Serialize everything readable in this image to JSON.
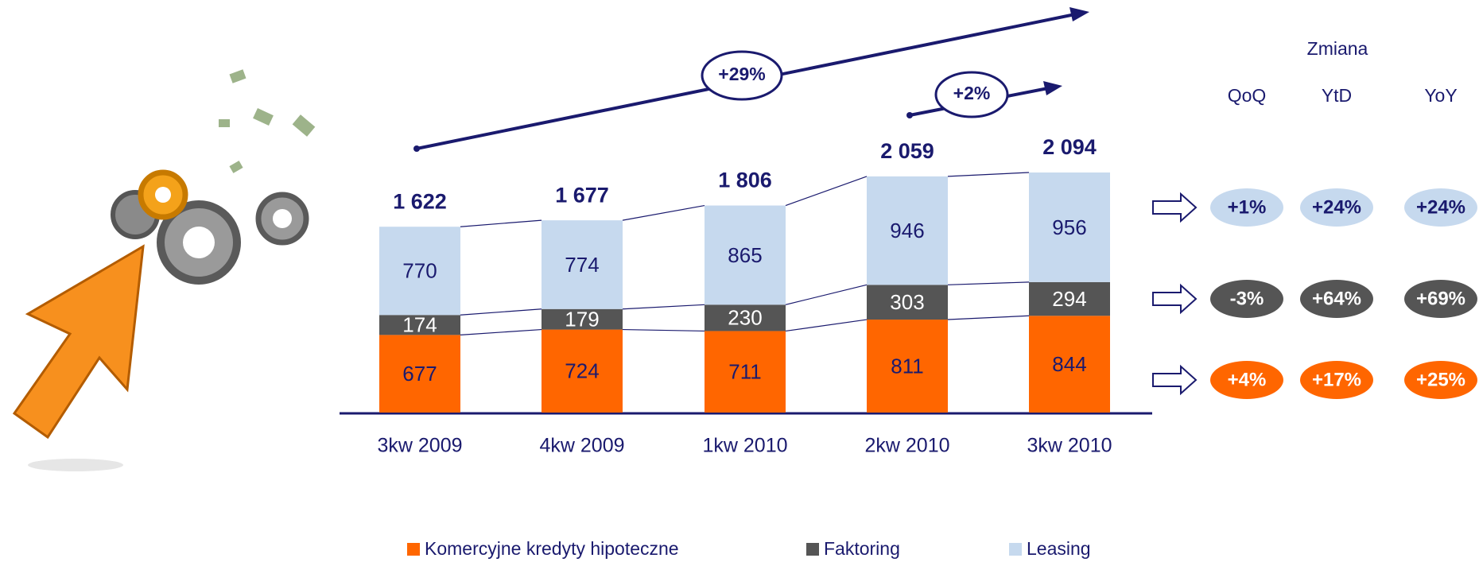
{
  "chart_data": {
    "type": "stacked-bar",
    "categories": [
      "3kw 2009",
      "4kw 2009",
      "1kw 2010",
      "2kw 2010",
      "3kw 2010"
    ],
    "series": [
      {
        "name": "Komercyjne kredyty  hipoteczne",
        "color": "#ff6600",
        "values": [
          677,
          724,
          711,
          811,
          844
        ]
      },
      {
        "name": "Faktoring",
        "color": "#555555",
        "values": [
          174,
          179,
          230,
          303,
          294
        ]
      },
      {
        "name": "Leasing",
        "color": "#c6d9ee",
        "values": [
          770,
          774,
          865,
          946,
          956
        ]
      }
    ],
    "totals": {
      "values": [
        1622,
        1677,
        1806,
        2059,
        2094
      ],
      "value_labels": [
        "1 622",
        "1 677",
        "1 806",
        "2 059",
        "2 094"
      ]
    },
    "annotations": [
      "+29%",
      "+2%"
    ],
    "change_table": {
      "title": "Zmiana",
      "columns": [
        "QoQ",
        "YtD",
        "YoY"
      ],
      "rows": [
        [
          "+1%",
          "+24%",
          "+24%"
        ],
        [
          "-3%",
          "+64%",
          "+69%"
        ],
        [
          "+4%",
          "+17%",
          "+25%"
        ]
      ]
    }
  }
}
